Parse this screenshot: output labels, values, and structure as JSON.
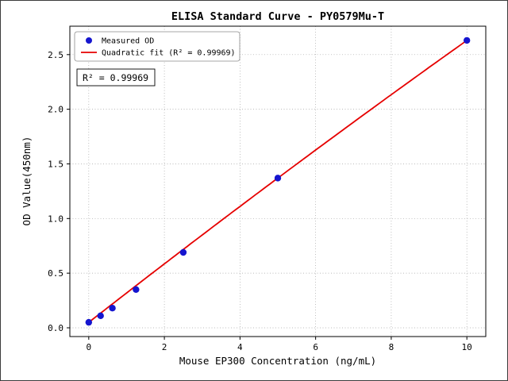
{
  "chart_data": {
    "type": "scatter",
    "title": "ELISA Standard Curve - PY0579Mu-T",
    "xlabel": "Mouse EP300 Concentration (ng/mL)",
    "ylabel": "OD Value(450nm)",
    "xlim": [
      -0.5,
      10.5
    ],
    "ylim": [
      -0.08,
      2.76
    ],
    "x_ticks": [
      0,
      2,
      4,
      6,
      8,
      10
    ],
    "y_ticks": [
      0.0,
      0.5,
      1.0,
      1.5,
      2.0,
      2.5
    ],
    "grid": true,
    "legend_position": "upper left",
    "series": [
      {
        "name": "Measured OD",
        "type": "scatter",
        "color": "#1515cf",
        "points": [
          [
            0,
            0.05
          ],
          [
            0.3125,
            0.11
          ],
          [
            0.625,
            0.18
          ],
          [
            1.25,
            0.35
          ],
          [
            2.5,
            0.69
          ],
          [
            5,
            1.37
          ],
          [
            10,
            2.63
          ]
        ]
      },
      {
        "name": "Quadratic fit (R² = 0.99969)",
        "type": "line",
        "color": "#e60000",
        "fit": {
          "a": 0.05,
          "b": 0.27,
          "c": -0.0012,
          "x_range": [
            0,
            10
          ]
        }
      }
    ],
    "annotation": {
      "text": "R² = 0.99969"
    },
    "colors": {
      "point": "#1515cf",
      "line": "#e60000",
      "grid": "#9a9a9a"
    }
  }
}
